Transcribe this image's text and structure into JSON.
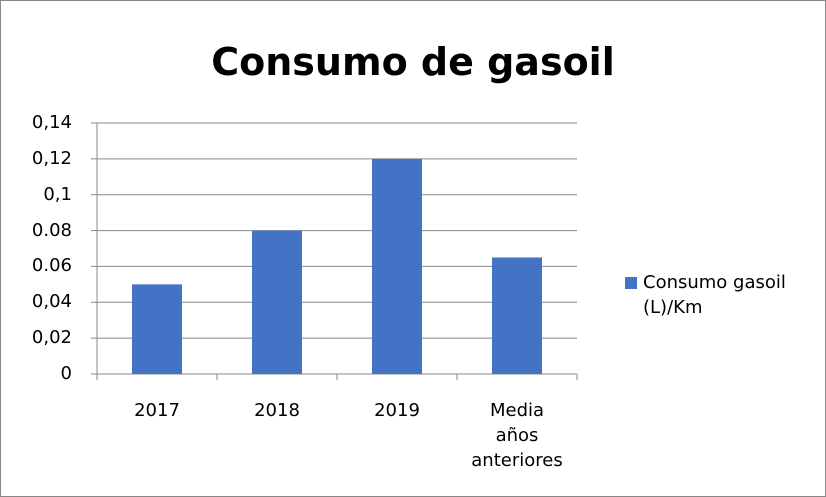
{
  "chart_data": {
    "type": "bar",
    "title": "Consumo de gasoil",
    "categories": [
      "2017",
      "2018",
      "2019",
      "Media años anteriores"
    ],
    "series": [
      {
        "name": "Consumo gasoil (L)/Km",
        "color": "#4472c4",
        "values": [
          0.05,
          0.08,
          0.12,
          0.065
        ]
      }
    ],
    "ylim": [
      0,
      0.14
    ],
    "yticks": [
      0,
      {
        "value": 0.02,
        "label": "0,02"
      },
      {
        "value": 0.04,
        "label": "0,04"
      },
      0.06,
      0.08,
      {
        "value": 0.1,
        "label": "0,1"
      },
      {
        "value": 0.12,
        "label": "0,12"
      },
      {
        "value": 0.14,
        "label": "0,14"
      }
    ],
    "grid": true,
    "legend": "right"
  }
}
